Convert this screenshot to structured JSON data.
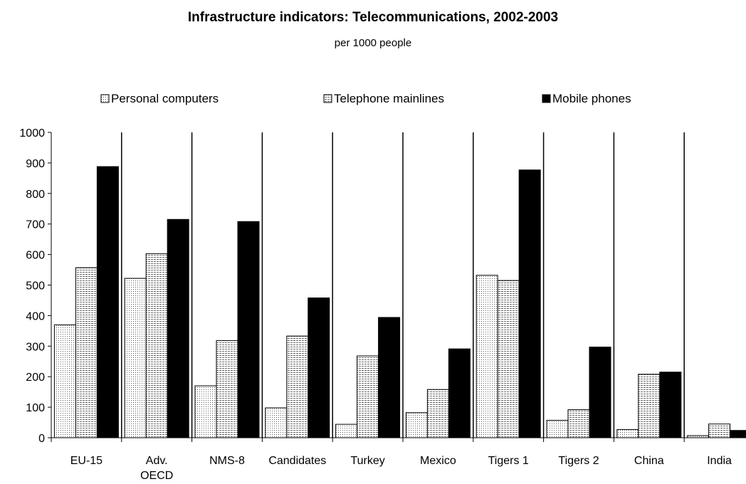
{
  "chart_data": {
    "type": "bar",
    "title": "Infrastructure indicators: Telecommunications, 2002-2003",
    "subtitle": "per 1000 people",
    "xlabel": "",
    "ylabel": "",
    "ylim": [
      0,
      1000
    ],
    "yticks": [
      0,
      100,
      200,
      300,
      400,
      500,
      600,
      700,
      800,
      900,
      1000
    ],
    "legend_position": "top",
    "grid": false,
    "categories": [
      [
        "EU-15"
      ],
      [
        "Adv.",
        "OECD"
      ],
      [
        "NMS-8"
      ],
      [
        "Candidates"
      ],
      [
        "Turkey"
      ],
      [
        "Mexico"
      ],
      [
        "Tigers 1"
      ],
      [
        "Tigers 2"
      ],
      [
        "China"
      ],
      [
        "India"
      ]
    ],
    "series": [
      {
        "name": "Personal computers",
        "pattern": "dots",
        "values": [
          370,
          522,
          170,
          98,
          44,
          82,
          532,
          57,
          27,
          7
        ]
      },
      {
        "name": "Telephone mainlines",
        "pattern": "lines",
        "values": [
          557,
          603,
          318,
          333,
          268,
          158,
          515,
          92,
          208,
          45
        ]
      },
      {
        "name": "Mobile phones",
        "pattern": "solid",
        "color": "#000000",
        "values": [
          888,
          715,
          708,
          458,
          394,
          291,
          877,
          297,
          215,
          24
        ]
      }
    ]
  }
}
